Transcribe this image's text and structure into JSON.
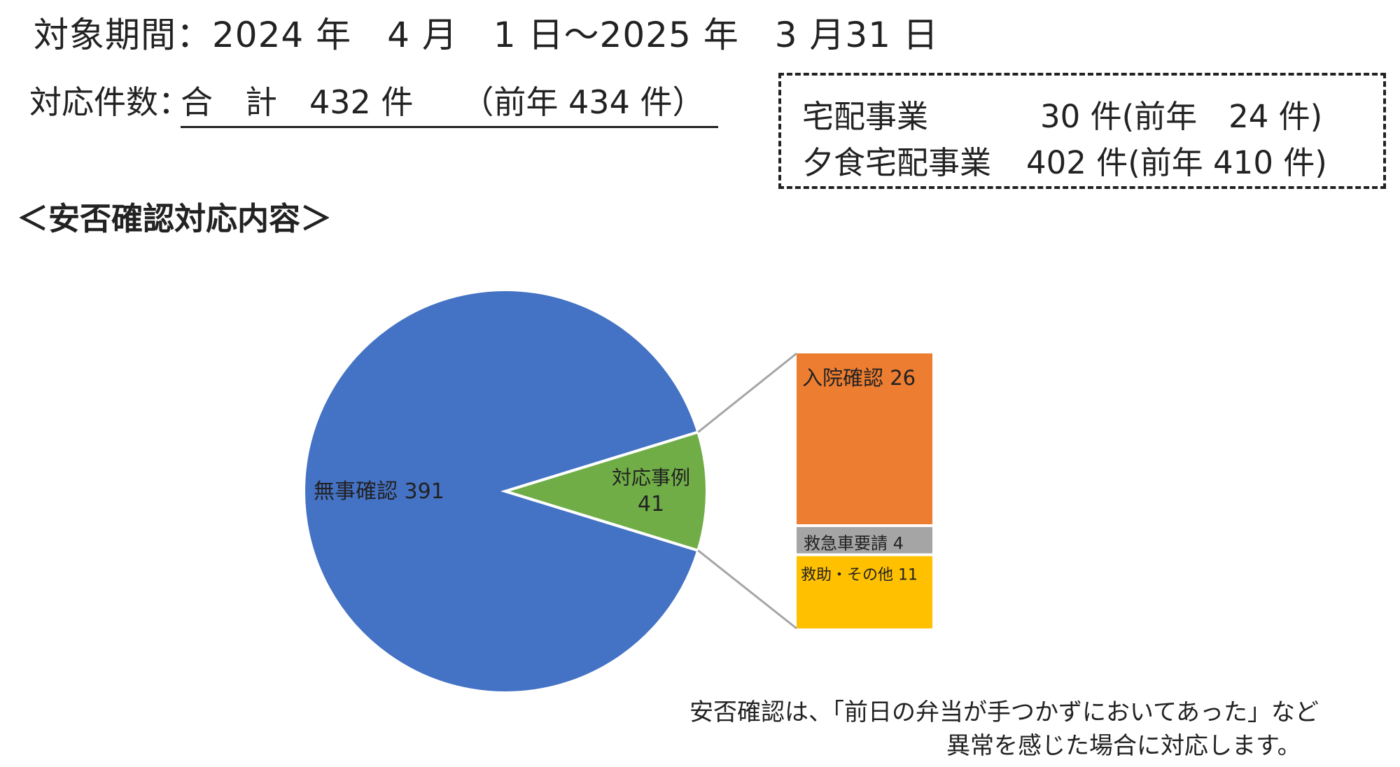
{
  "header": {
    "period": "対象期間：2024 年　4 月　1 日～2025 年　3 月31 日",
    "count_label": "対応件数：",
    "count_value": "合　計　432 件　　（前年 434 件）"
  },
  "breakdown": {
    "items": [
      {
        "name": "宅配事業",
        "value": "30 件(前年　24 件)"
      },
      {
        "name": "夕食宅配事業",
        "value": "402 件(前年 410 件)"
      }
    ]
  },
  "section_title": "＜安否確認対応内容＞",
  "chart_data": {
    "type": "bar-of-pie",
    "pie": {
      "slices": [
        {
          "label": "無事確認",
          "value": 391,
          "display": "無事確認 391",
          "color": "#4472C4"
        },
        {
          "label": "対応事例",
          "value": 41,
          "display_name": "対応事例",
          "display_value": "41",
          "color": "#70AD47"
        }
      ]
    },
    "bar": {
      "segments": [
        {
          "label": "入院確認",
          "value": 26,
          "display": "入院確認  26",
          "color": "#ED7D31"
        },
        {
          "label": "救急車要請",
          "value": 4,
          "display": "救急車要請  4",
          "color": "#A5A5A5"
        },
        {
          "label": "救助・その他",
          "value": 11,
          "display": "救助・その他  11",
          "color": "#FFC000"
        }
      ]
    }
  },
  "note": {
    "line1": "安否確認は、「前日の弁当が手つかずにおいてあった」など",
    "line2": "異常を感じた場合に対応します。"
  }
}
